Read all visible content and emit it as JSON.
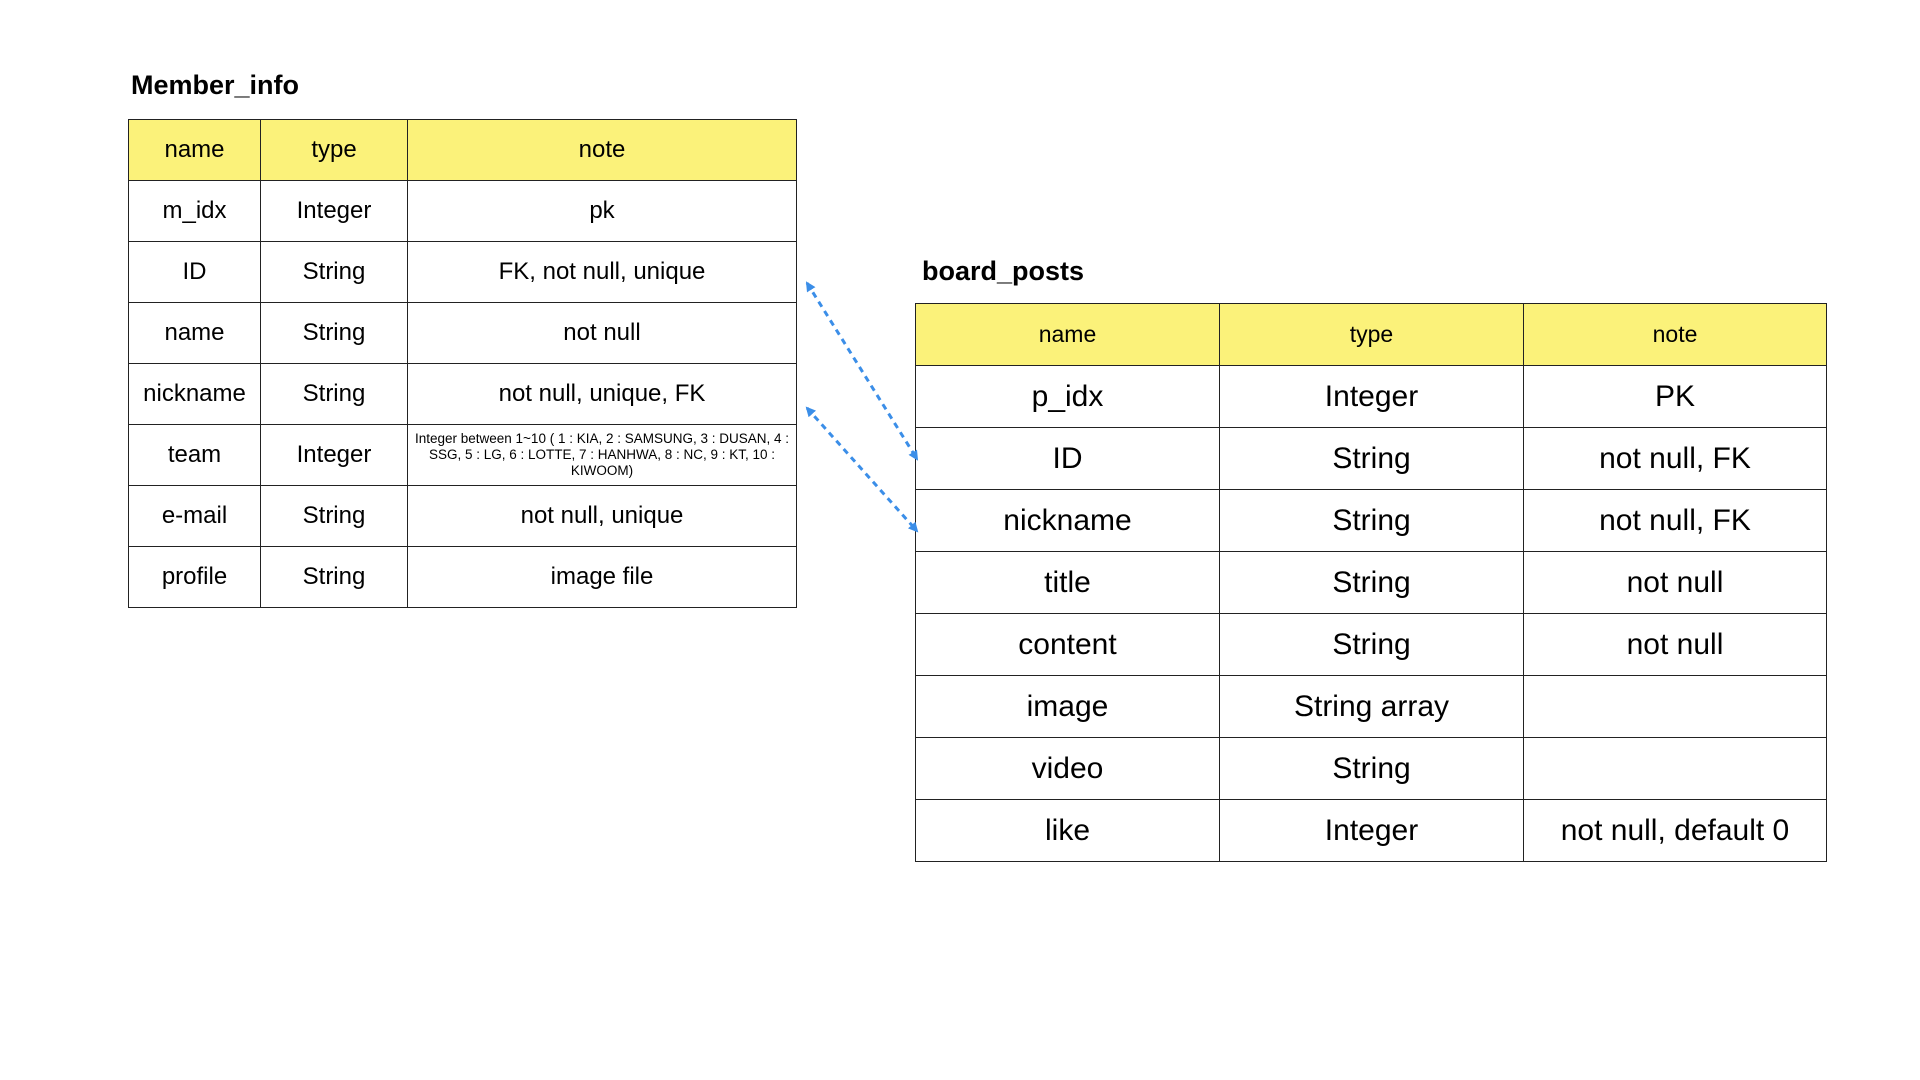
{
  "member_info": {
    "title": "Member_info",
    "headers": [
      "name",
      "type",
      "note"
    ],
    "rows": [
      [
        "m_idx",
        "Integer",
        "pk"
      ],
      [
        "ID",
        "String",
        "FK, not null, unique"
      ],
      [
        "name",
        "String",
        "not null"
      ],
      [
        "nickname",
        "String",
        "not null, unique, FK"
      ],
      [
        "team",
        "Integer",
        "Integer between 1~10 ( 1 : KIA, 2 : SAMSUNG, 3 : DUSAN, 4 : SSG, 5 : LG, 6 : LOTTE, 7  : HANHWA, 8 : NC, 9 : KT, 10 : KIWOOM)"
      ],
      [
        "e-mail",
        "String",
        "not null, unique"
      ],
      [
        "profile",
        "String",
        "image file"
      ]
    ]
  },
  "board_posts": {
    "title": "board_posts",
    "headers": [
      "name",
      "type",
      "note"
    ],
    "rows": [
      [
        "p_idx",
        "Integer",
        "PK"
      ],
      [
        "ID",
        "String",
        "not null, FK"
      ],
      [
        "nickname",
        "String",
        "not null, FK"
      ],
      [
        "title",
        "String",
        "not null"
      ],
      [
        "content",
        "String",
        "not null"
      ],
      [
        "image",
        "String array",
        ""
      ],
      [
        "video",
        "String",
        ""
      ],
      [
        "like",
        "Integer",
        "not null, default 0"
      ]
    ]
  },
  "relations": [
    {
      "from": "member_info.ID",
      "to": "board_posts.ID"
    },
    {
      "from": "member_info.nickname",
      "to": "board_posts.nickname"
    }
  ],
  "colors": {
    "header_fill": "#fbf27a",
    "connector": "#3b8ee8",
    "border": "#222222"
  }
}
